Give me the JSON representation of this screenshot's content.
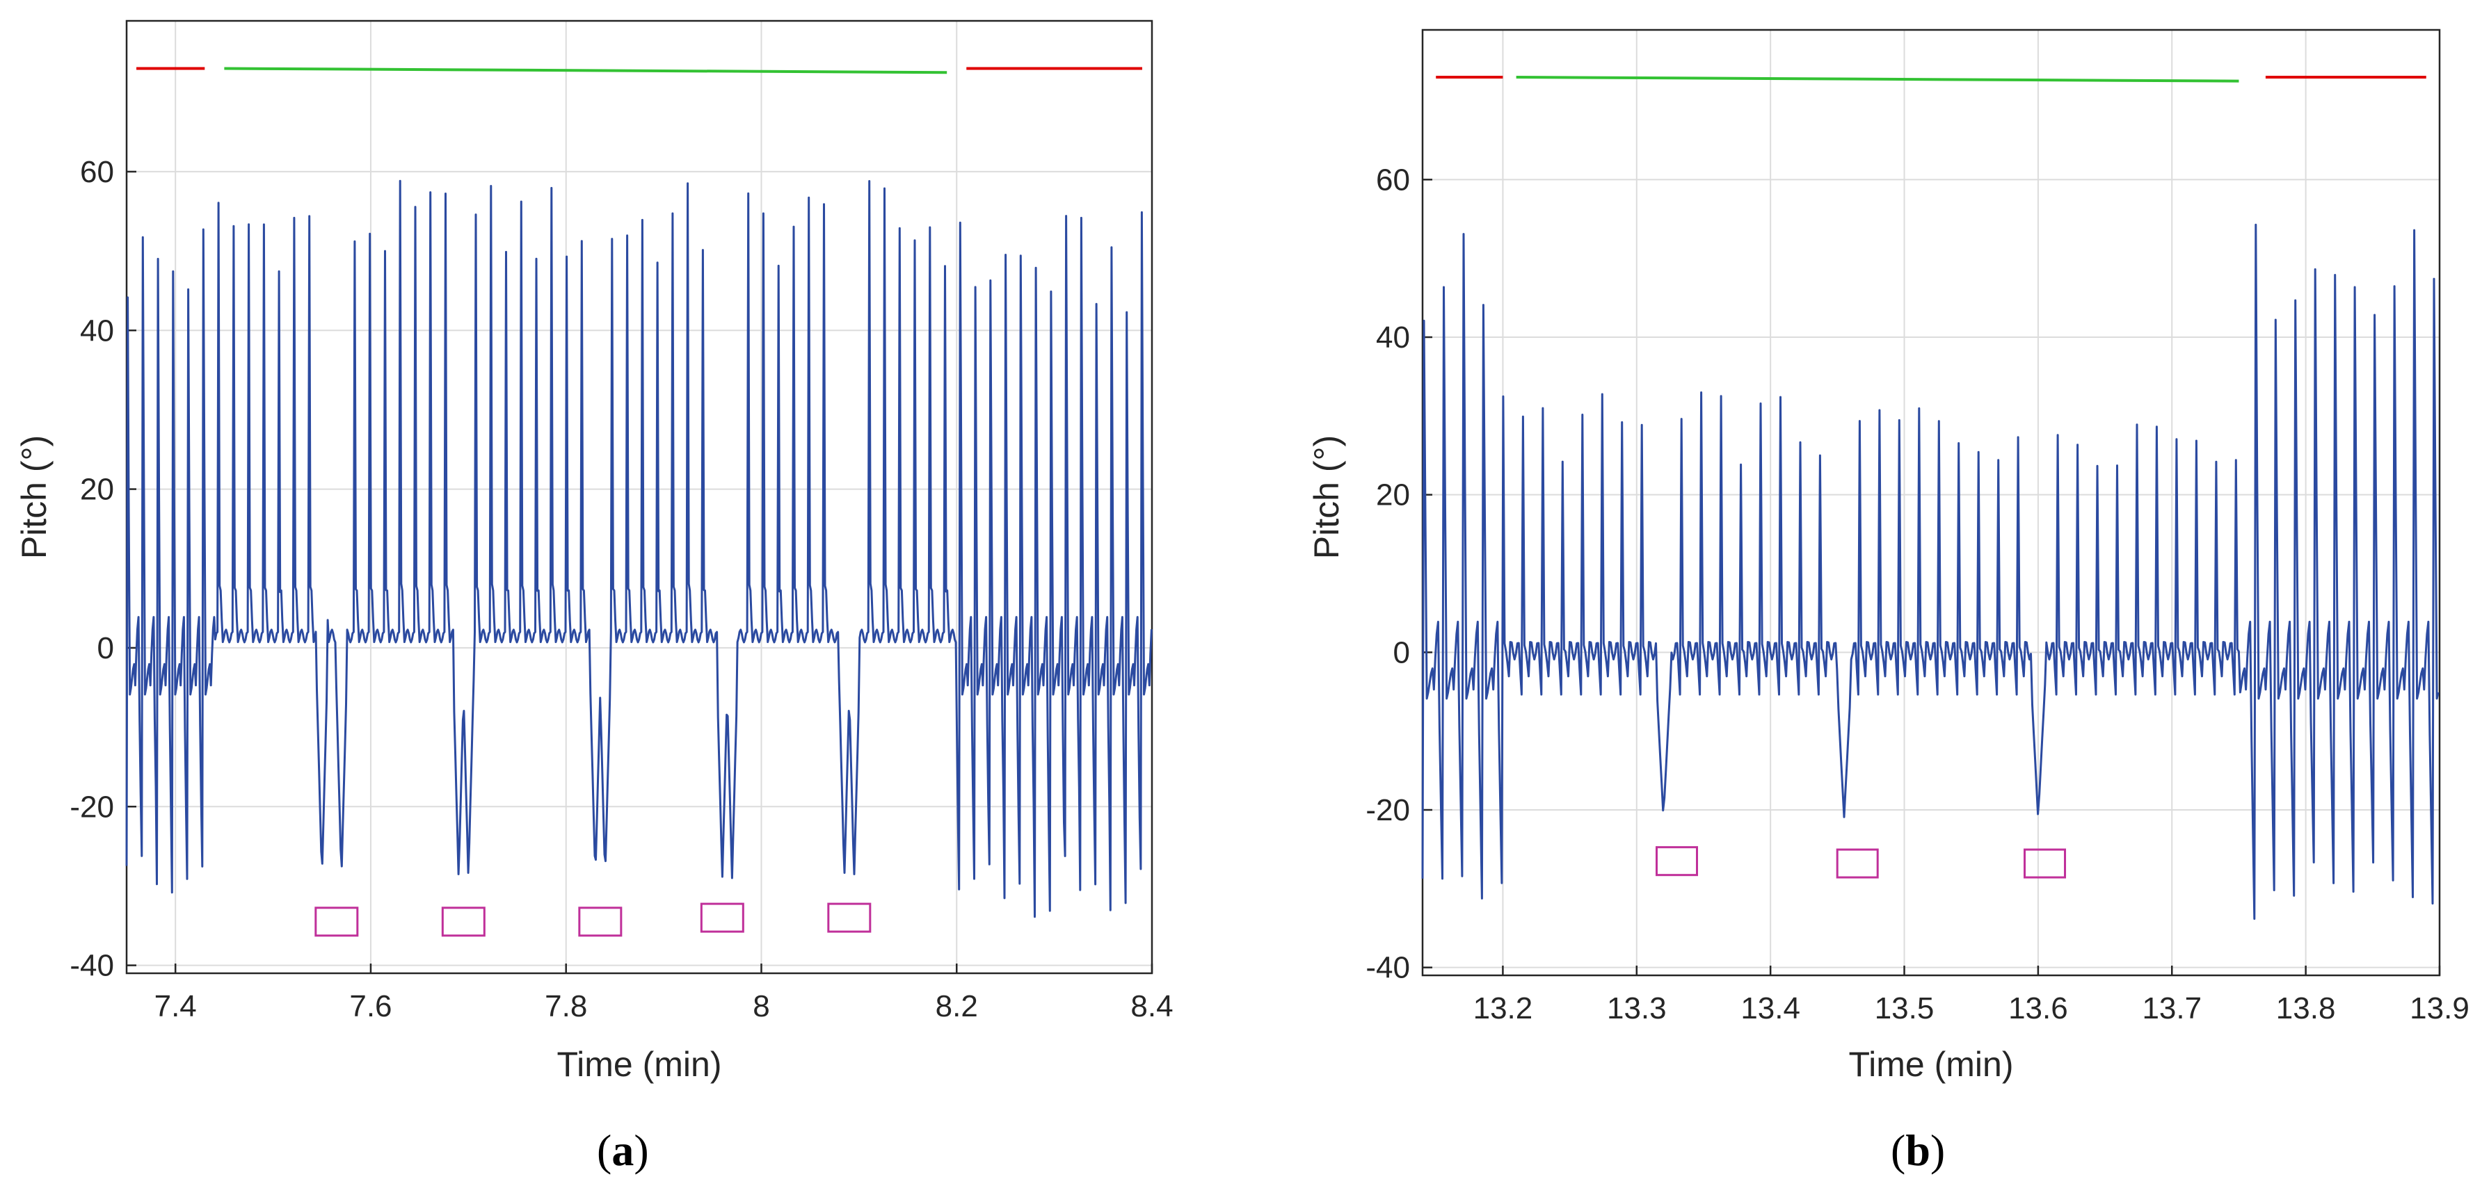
{
  "figure": {
    "colors": {
      "signal": "#2b4aa0",
      "red_bar": "#e00000",
      "green_bar": "#33c233",
      "marker": "#c0309a",
      "grid": "#dcdcdc",
      "axis": "#262626"
    }
  },
  "chart_data": [
    {
      "type": "line",
      "panel": "a",
      "caption": "(a)",
      "caption_open": "(",
      "caption_letter": "a",
      "caption_close": ")",
      "xlabel": "Time (min)",
      "ylabel": "Pitch (°)",
      "xlim": [
        7.35,
        8.4
      ],
      "ylim": [
        -41,
        79
      ],
      "xticks": [
        7.4,
        7.6,
        7.8,
        8.0,
        8.2,
        8.4
      ],
      "xtick_labels": [
        "7.4",
        "7.6",
        "7.8",
        "8",
        "8.2",
        "8.4"
      ],
      "yticks": [
        -40,
        -20,
        0,
        20,
        40,
        60
      ],
      "ytick_labels": [
        "-40",
        "-20",
        "0",
        "20",
        "40",
        "60"
      ],
      "grid": true,
      "series": {
        "name": "Pitch",
        "regime_segments": [
          {
            "t0": 7.35,
            "t1": 7.44,
            "mode": "full"
          },
          {
            "t0": 7.45,
            "t1": 8.2,
            "mode": "low"
          },
          {
            "t0": 8.2,
            "t1": 8.4,
            "mode": "full"
          }
        ],
        "spike_period": 0.0155,
        "dip_times": [
          7.55,
          7.57,
          7.69,
          7.7,
          7.83,
          7.84,
          7.96,
          7.97,
          8.085,
          8.095
        ],
        "dip_depth": -29
      },
      "status_lines": [
        {
          "color": "red",
          "x": [
            7.36,
            7.43
          ],
          "y": [
            73,
            73
          ]
        },
        {
          "color": "green",
          "x": [
            7.45,
            8.19
          ],
          "y": [
            73,
            72.5
          ]
        },
        {
          "color": "red",
          "x": [
            8.21,
            8.39
          ],
          "y": [
            73,
            73
          ]
        }
      ],
      "markers": [
        {
          "x": 7.565,
          "y": -34.5
        },
        {
          "x": 7.695,
          "y": -34.5
        },
        {
          "x": 7.835,
          "y": -34.5
        },
        {
          "x": 7.96,
          "y": -34.0
        },
        {
          "x": 8.09,
          "y": -34.0
        }
      ]
    },
    {
      "type": "line",
      "panel": "b",
      "caption": "(b)",
      "caption_open": "(",
      "caption_letter": "b",
      "caption_close": ")",
      "xlabel": "Time (min)",
      "ylabel": "Pitch (°)",
      "xlim": [
        13.14,
        13.9
      ],
      "ylim": [
        -41,
        79
      ],
      "xticks": [
        13.2,
        13.3,
        13.4,
        13.5,
        13.6,
        13.7,
        13.8,
        13.9
      ],
      "xtick_labels": [
        "13.2",
        "13.3",
        "13.4",
        "13.5",
        "13.6",
        "13.7",
        "13.8",
        "13.9"
      ],
      "yticks": [
        -40,
        -20,
        0,
        20,
        40,
        60
      ],
      "ytick_labels": [
        "-40",
        "-20",
        "0",
        "20",
        "40",
        "60"
      ],
      "grid": true,
      "series": {
        "name": "Pitch",
        "regime_segments": [
          {
            "t0": 13.14,
            "t1": 13.2,
            "mode": "full"
          },
          {
            "t0": 13.2,
            "t1": 13.75,
            "mode": "mid"
          },
          {
            "t0": 13.75,
            "t1": 13.9,
            "mode": "full"
          }
        ],
        "spike_period": 0.0148,
        "dip_times": [
          13.32,
          13.455,
          13.6
        ],
        "dip_depth": -21
      },
      "status_lines": [
        {
          "color": "red",
          "x": [
            13.15,
            13.2
          ],
          "y": [
            73,
            73
          ]
        },
        {
          "color": "green",
          "x": [
            13.21,
            13.75
          ],
          "y": [
            73,
            72.5
          ]
        },
        {
          "color": "red",
          "x": [
            13.77,
            13.89
          ],
          "y": [
            73,
            73
          ]
        }
      ],
      "markers": [
        {
          "x": 13.33,
          "y": -26.5
        },
        {
          "x": 13.465,
          "y": -26.8
        },
        {
          "x": 13.605,
          "y": -26.8
        }
      ]
    }
  ]
}
